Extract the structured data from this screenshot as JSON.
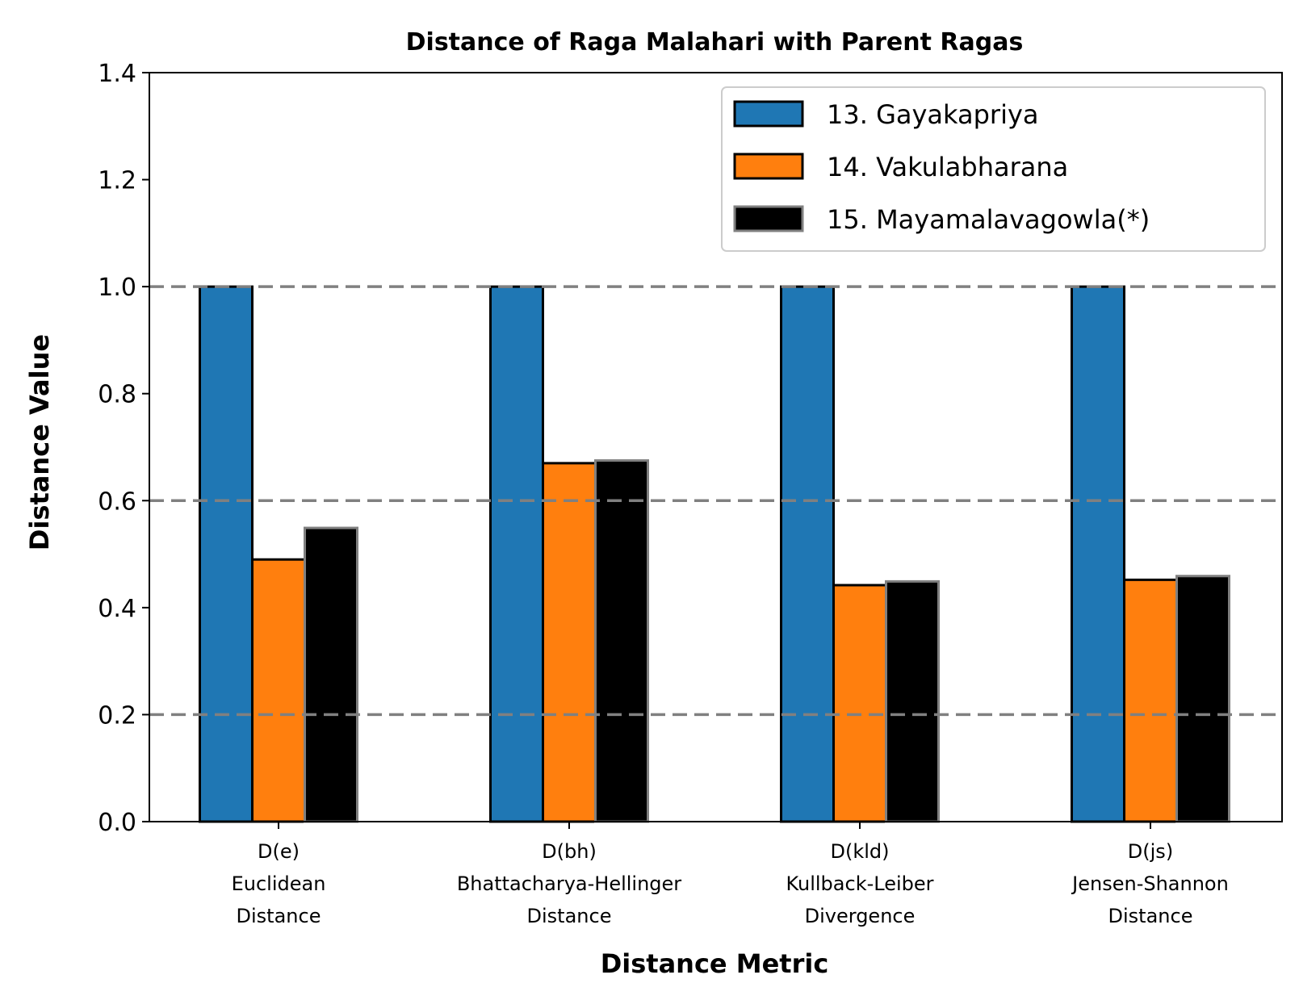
{
  "chart_data": {
    "type": "bar",
    "title": "Distance of Raga Malahari with Parent Ragas",
    "xlabel": "Distance Metric",
    "ylabel": "Distance Value",
    "ylim": [
      0,
      1.4
    ],
    "yticks": [
      "0.0",
      "0.2",
      "0.4",
      "0.6",
      "0.8",
      "1.0",
      "1.2",
      "1.4"
    ],
    "reference_lines": [
      0.2,
      0.6,
      1.0
    ],
    "grid": false,
    "legend_position": "top-right",
    "categories": [
      [
        "D(e)",
        "Euclidean",
        "Distance"
      ],
      [
        "D(bh)",
        "Bhattacharya-Hellinger",
        "Distance"
      ],
      [
        "D(kld)",
        "Kullback-Leiber",
        "Divergence"
      ],
      [
        "D(js)",
        "Jensen-Shannon",
        "Distance"
      ]
    ],
    "series": [
      {
        "name": "13. Gayakapriya",
        "values": [
          1.0,
          1.0,
          1.0,
          1.0
        ],
        "color": "#1f77b4",
        "edge": "#000000"
      },
      {
        "name": "14. Vakulabharana",
        "values": [
          0.49,
          0.67,
          0.442,
          0.452
        ],
        "color": "#ff7f0e",
        "edge": "#000000"
      },
      {
        "name": "15. Mayamalavagowla(*)",
        "values": [
          0.549,
          0.675,
          0.449,
          0.459
        ],
        "color": "#000000",
        "edge": "#808080"
      }
    ]
  }
}
